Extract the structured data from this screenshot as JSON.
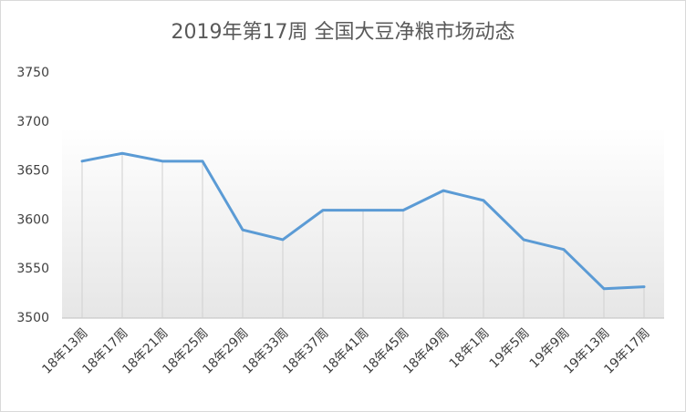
{
  "chart_data": {
    "type": "line",
    "title": "2019年第17周 全国大豆净粮市场动态",
    "categories": [
      "18年13周",
      "18年17周",
      "18年21周",
      "18年25周",
      "18年29周",
      "18年33周",
      "18年37周",
      "18年41周",
      "18年45周",
      "18年49周",
      "18年1周",
      "19年5周",
      "19年9周",
      "19年13周",
      "19年17周"
    ],
    "series": [
      {
        "name": "全国大豆净粮",
        "color": "#5b9bd5",
        "values": [
          3660,
          3668,
          3660,
          3660,
          3590,
          3580,
          3610,
          3610,
          3610,
          3630,
          3620,
          3580,
          3570,
          3530,
          3532
        ]
      }
    ],
    "ylim": [
      3500,
      3750
    ],
    "yticks": [
      3500,
      3550,
      3600,
      3650,
      3700,
      3750
    ],
    "grid": false,
    "drop_lines": true
  }
}
